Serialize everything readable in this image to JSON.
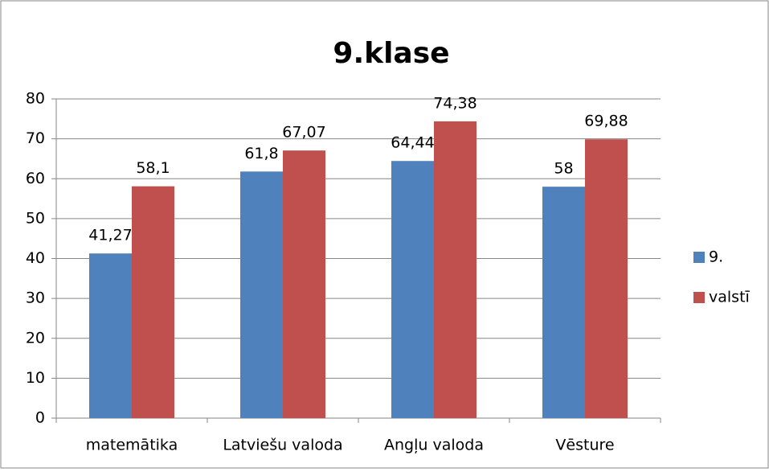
{
  "chart_data": {
    "type": "bar",
    "title": "9.klase",
    "categories": [
      "matemātika",
      "Latviešu valoda",
      "Angļu valoda",
      "Vēsture"
    ],
    "series": [
      {
        "name": "9.",
        "color": "#4f81bd",
        "values": [
          41.27,
          61.8,
          64.44,
          58
        ],
        "value_labels": [
          "41,27",
          "61,8",
          "64,44",
          "58"
        ]
      },
      {
        "name": "valstī",
        "color": "#c0504d",
        "values": [
          58.1,
          67.07,
          74.38,
          69.88
        ],
        "value_labels": [
          "58,1",
          "67,07",
          "74,38",
          "69,88"
        ]
      }
    ],
    "ylim": [
      0,
      80
    ],
    "yticks": [
      0,
      10,
      20,
      30,
      40,
      50,
      60,
      70,
      80
    ],
    "grid": true,
    "legend": "right"
  }
}
